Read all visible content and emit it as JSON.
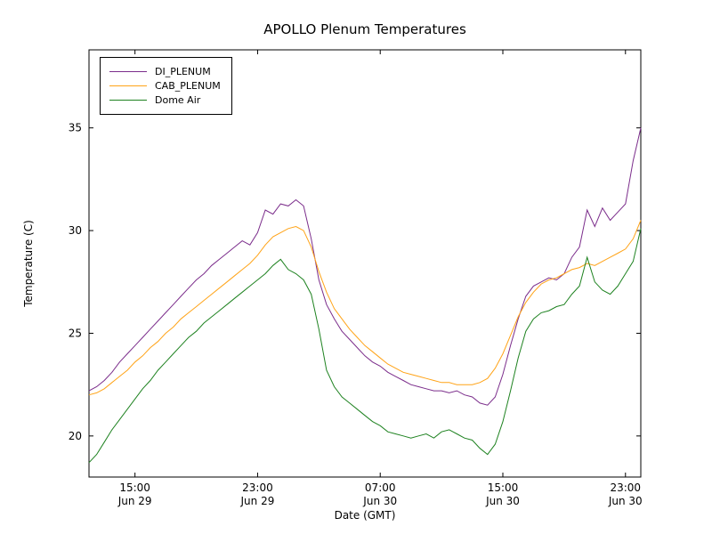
{
  "chart_data": {
    "type": "line",
    "title": "APOLLO Plenum Temperatures",
    "xlabel": "Date (GMT)",
    "ylabel": "Temperature (C)",
    "xlim": [
      12,
      48
    ],
    "ylim": [
      18,
      38.8
    ],
    "grid": false,
    "legend_position": "upper left",
    "x_unit": "hours since Jun 29 00:00 GMT",
    "x_ticks": [
      {
        "value": 15,
        "time": "15:00",
        "date": "Jun 29"
      },
      {
        "value": 23,
        "time": "23:00",
        "date": "Jun 29"
      },
      {
        "value": 31,
        "time": "07:00",
        "date": "Jun 30"
      },
      {
        "value": 39,
        "time": "15:00",
        "date": "Jun 30"
      },
      {
        "value": 47,
        "time": "23:00",
        "date": "Jun 30"
      }
    ],
    "y_ticks": [
      20,
      25,
      30,
      35
    ],
    "x": [
      12,
      12.5,
      13,
      13.5,
      14,
      14.5,
      15,
      15.5,
      16,
      16.5,
      17,
      17.5,
      18,
      18.5,
      19,
      19.5,
      20,
      20.5,
      21,
      21.5,
      22,
      22.5,
      23,
      23.5,
      24,
      24.5,
      25,
      25.5,
      26,
      26.5,
      27,
      27.5,
      28,
      28.5,
      29,
      29.5,
      30,
      30.5,
      31,
      31.5,
      32,
      32.5,
      33,
      33.5,
      34,
      34.5,
      35,
      35.5,
      36,
      36.5,
      37,
      37.5,
      38,
      38.5,
      39,
      39.5,
      40,
      40.5,
      41,
      41.5,
      42,
      42.5,
      43,
      43.5,
      44,
      44.5,
      45,
      45.5,
      46,
      46.5,
      47,
      47.5,
      48
    ],
    "series": [
      {
        "name": "DI_PLENUM",
        "color": "#7b2d8b",
        "values": [
          22.2,
          22.4,
          22.7,
          23.1,
          23.6,
          24.0,
          24.4,
          24.8,
          25.2,
          25.6,
          26.0,
          26.4,
          26.8,
          27.2,
          27.6,
          27.9,
          28.3,
          28.6,
          28.9,
          29.2,
          29.5,
          29.3,
          29.9,
          31.0,
          30.8,
          31.3,
          31.2,
          31.5,
          31.2,
          29.6,
          27.6,
          26.4,
          25.7,
          25.1,
          24.7,
          24.3,
          23.9,
          23.6,
          23.4,
          23.1,
          22.9,
          22.7,
          22.5,
          22.4,
          22.3,
          22.2,
          22.2,
          22.1,
          22.2,
          22.0,
          21.9,
          21.6,
          21.5,
          21.9,
          23.0,
          24.4,
          25.7,
          26.8,
          27.3,
          27.5,
          27.7,
          27.6,
          27.9,
          28.7,
          29.2,
          31.0,
          30.2,
          31.1,
          30.5,
          30.9,
          31.3,
          33.4,
          35.0
        ]
      },
      {
        "name": "CAB_PLENUM",
        "color": "#ffa317",
        "values": [
          22.0,
          22.1,
          22.3,
          22.6,
          22.9,
          23.2,
          23.6,
          23.9,
          24.3,
          24.6,
          25.0,
          25.3,
          25.7,
          26.0,
          26.3,
          26.6,
          26.9,
          27.2,
          27.5,
          27.8,
          28.1,
          28.4,
          28.8,
          29.3,
          29.7,
          29.9,
          30.1,
          30.2,
          30.0,
          29.2,
          28.0,
          27.0,
          26.2,
          25.7,
          25.2,
          24.8,
          24.4,
          24.1,
          23.8,
          23.5,
          23.3,
          23.1,
          23.0,
          22.9,
          22.8,
          22.7,
          22.6,
          22.6,
          22.5,
          22.5,
          22.5,
          22.6,
          22.8,
          23.3,
          24.0,
          24.9,
          25.8,
          26.5,
          27.0,
          27.4,
          27.6,
          27.7,
          27.9,
          28.1,
          28.2,
          28.4,
          28.3,
          28.5,
          28.7,
          28.9,
          29.1,
          29.6,
          30.5
        ]
      },
      {
        "name": "Dome Air",
        "color": "#1e8220",
        "values": [
          18.7,
          19.1,
          19.7,
          20.3,
          20.8,
          21.3,
          21.8,
          22.3,
          22.7,
          23.2,
          23.6,
          24.0,
          24.4,
          24.8,
          25.1,
          25.5,
          25.8,
          26.1,
          26.4,
          26.7,
          27.0,
          27.3,
          27.6,
          27.9,
          28.3,
          28.6,
          28.1,
          27.9,
          27.6,
          26.9,
          25.2,
          23.2,
          22.4,
          21.9,
          21.6,
          21.3,
          21.0,
          20.7,
          20.5,
          20.2,
          20.1,
          20.0,
          19.9,
          20.0,
          20.1,
          19.9,
          20.2,
          20.3,
          20.1,
          19.9,
          19.8,
          19.4,
          19.1,
          19.6,
          20.7,
          22.2,
          23.8,
          25.1,
          25.7,
          26.0,
          26.1,
          26.3,
          26.4,
          26.9,
          27.3,
          28.7,
          27.5,
          27.1,
          26.9,
          27.3,
          27.9,
          28.5,
          30.1
        ]
      }
    ]
  }
}
